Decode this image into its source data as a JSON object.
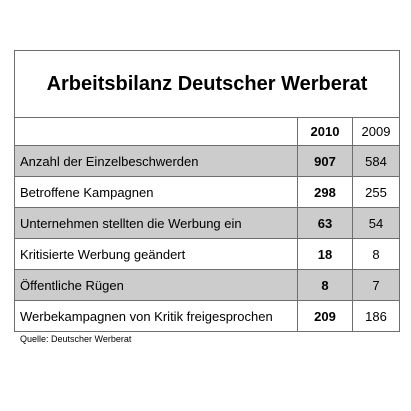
{
  "chart_data": {
    "type": "table",
    "title": "Arbeitsbilanz Deutscher Werberat",
    "columns": [
      "",
      "2010",
      "2009"
    ],
    "rows": [
      {
        "label": "Anzahl der Einzelbeschwerden",
        "v2010": 907,
        "v2009": 584,
        "shaded": true
      },
      {
        "label": "Betroffene Kampagnen",
        "v2010": 298,
        "v2009": 255,
        "shaded": false
      },
      {
        "label": "Unternehmen stellten die Werbung ein",
        "v2010": 63,
        "v2009": 54,
        "shaded": true
      },
      {
        "label": "Kritisierte Werbung geändert",
        "v2010": 18,
        "v2009": 8,
        "shaded": false
      },
      {
        "label": "Öffentliche Rügen",
        "v2010": 8,
        "v2009": 7,
        "shaded": true
      },
      {
        "label": "Werbekampagnen von Kritik freigesprochen",
        "v2010": 209,
        "v2009": 186,
        "shaded": false
      }
    ],
    "source": "Quelle: Deutscher Werberat"
  }
}
